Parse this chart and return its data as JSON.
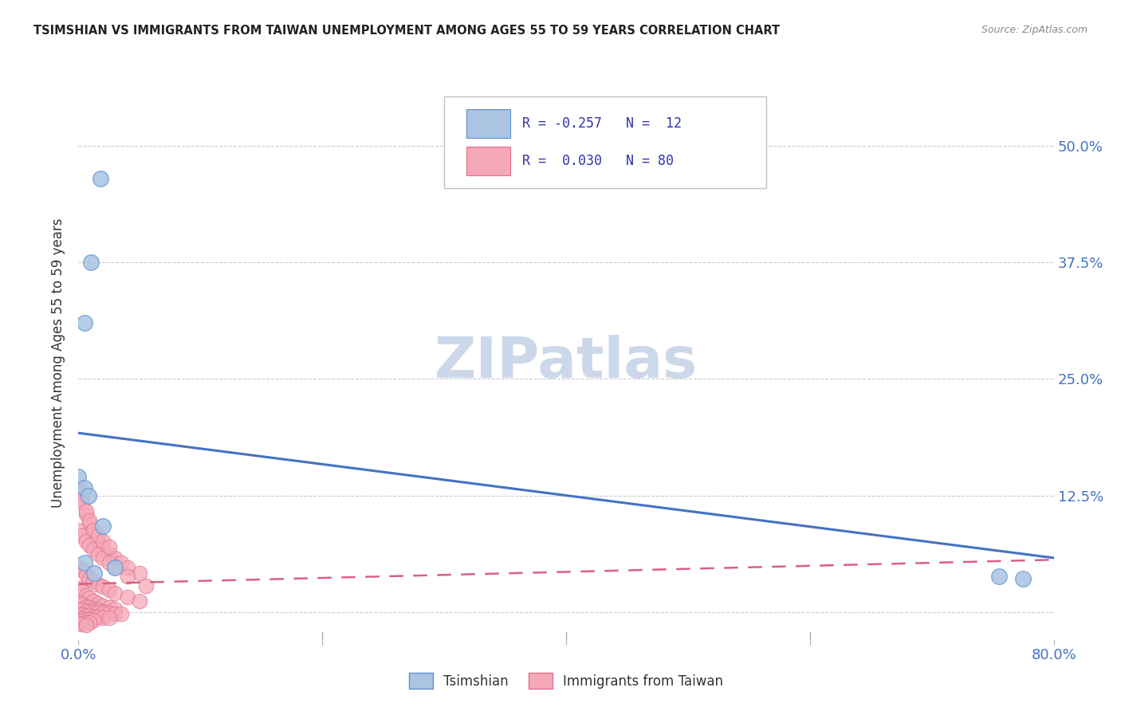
{
  "title": "TSIMSHIAN VS IMMIGRANTS FROM TAIWAN UNEMPLOYMENT AMONG AGES 55 TO 59 YEARS CORRELATION CHART",
  "source": "Source: ZipAtlas.com",
  "ylabel": "Unemployment Among Ages 55 to 59 years",
  "xlim": [
    0.0,
    0.8
  ],
  "ylim": [
    -0.03,
    0.565
  ],
  "yticks": [
    0.0,
    0.125,
    0.25,
    0.375,
    0.5
  ],
  "ytick_labels": [
    "",
    "12.5%",
    "25.0%",
    "37.5%",
    "50.0%"
  ],
  "xticks": [
    0.0,
    0.2,
    0.4,
    0.6,
    0.8
  ],
  "tsimshian_color": "#aac4e2",
  "taiwan_color": "#f5a8b8",
  "tsimshian_edge_color": "#5b8fcf",
  "taiwan_edge_color": "#e07090",
  "tsimshian_line_color": "#4472c4",
  "taiwan_line_color": "#d96080",
  "watermark_color": "#ccd8ea",
  "tsimshian_scatter_x": [
    0.018,
    0.01,
    0.005,
    0.0,
    0.005,
    0.008,
    0.02,
    0.03,
    0.005,
    0.013,
    0.755,
    0.775
  ],
  "tsimshian_scatter_y": [
    0.465,
    0.375,
    0.31,
    0.145,
    0.133,
    0.125,
    0.092,
    0.048,
    0.053,
    0.042,
    0.038,
    0.036
  ],
  "taiwan_scatter_x": [
    0.0,
    0.003,
    0.006,
    0.009,
    0.012,
    0.016,
    0.02,
    0.025,
    0.03,
    0.035,
    0.04,
    0.05,
    0.0,
    0.003,
    0.006,
    0.009,
    0.012,
    0.016,
    0.02,
    0.025,
    0.03,
    0.04,
    0.05,
    0.0,
    0.003,
    0.006,
    0.009,
    0.012,
    0.016,
    0.02,
    0.025,
    0.03,
    0.0,
    0.003,
    0.006,
    0.009,
    0.012,
    0.016,
    0.02,
    0.0,
    0.003,
    0.006,
    0.009,
    0.012,
    0.016,
    0.02,
    0.025,
    0.03,
    0.035,
    0.0,
    0.003,
    0.006,
    0.009,
    0.012,
    0.016,
    0.02,
    0.025,
    0.0,
    0.003,
    0.006,
    0.009,
    0.012,
    0.0,
    0.003,
    0.006,
    0.009,
    0.0,
    0.003,
    0.006,
    0.0,
    0.003,
    0.006,
    0.009,
    0.012,
    0.016,
    0.02,
    0.025,
    0.03,
    0.04,
    0.055,
    0.0,
    0.003,
    0.006,
    0.009,
    0.012,
    0.016,
    0.02,
    0.025
  ],
  "taiwan_scatter_y": [
    0.135,
    0.12,
    0.105,
    0.095,
    0.085,
    0.075,
    0.068,
    0.062,
    0.058,
    0.053,
    0.048,
    0.042,
    0.048,
    0.045,
    0.04,
    0.036,
    0.033,
    0.03,
    0.027,
    0.024,
    0.02,
    0.016,
    0.012,
    0.025,
    0.022,
    0.018,
    0.015,
    0.012,
    0.009,
    0.007,
    0.005,
    0.003,
    0.01,
    0.008,
    0.006,
    0.005,
    0.003,
    0.002,
    0.001,
    0.002,
    0.002,
    0.001,
    0.001,
    0.0,
    0.0,
    -0.001,
    -0.001,
    -0.002,
    -0.002,
    -0.003,
    -0.003,
    -0.004,
    -0.004,
    -0.005,
    -0.005,
    -0.006,
    -0.006,
    -0.007,
    -0.007,
    -0.008,
    -0.008,
    -0.009,
    -0.01,
    -0.01,
    -0.011,
    -0.011,
    -0.012,
    -0.013,
    -0.014,
    0.088,
    0.082,
    0.076,
    0.072,
    0.067,
    0.062,
    0.058,
    0.053,
    0.048,
    0.038,
    0.028,
    0.128,
    0.118,
    0.108,
    0.098,
    0.088,
    0.082,
    0.076,
    0.07
  ],
  "blue_line_x": [
    0.0,
    0.8
  ],
  "blue_line_y": [
    0.192,
    0.058
  ],
  "pink_line_x": [
    0.0,
    0.8
  ],
  "pink_line_y": [
    0.03,
    0.056
  ],
  "background_color": "#ffffff",
  "grid_color": "#cccccc",
  "title_color": "#222222",
  "tick_color": "#4472c4"
}
